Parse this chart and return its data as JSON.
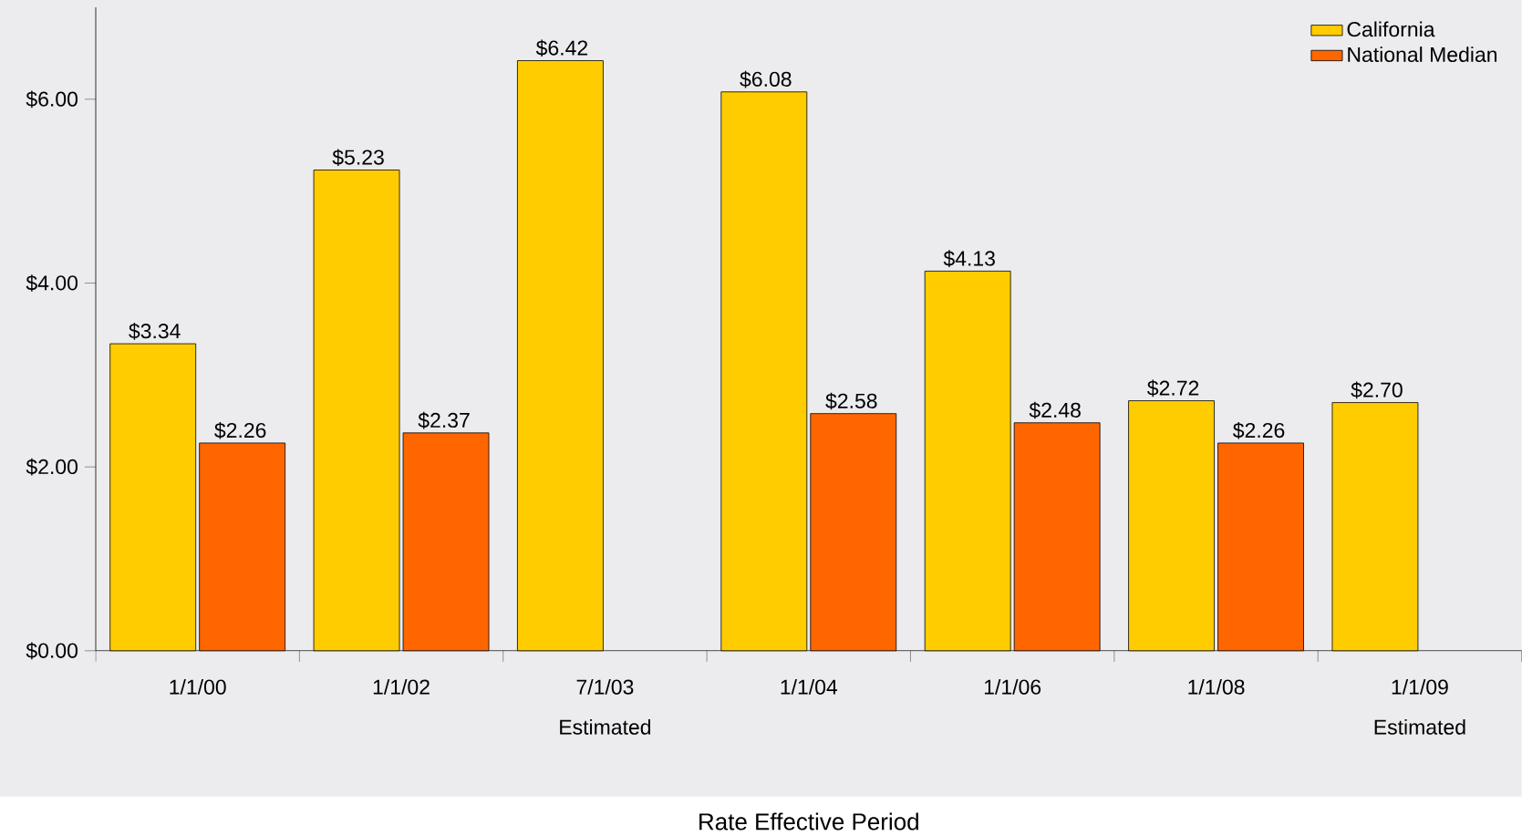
{
  "chart_data": {
    "type": "bar",
    "xlabel": "Rate Effective Period",
    "categories": [
      "1/1/00",
      "1/1/02",
      "7/1/03 Estimated",
      "1/1/04",
      "1/1/06",
      "1/1/08",
      "1/1/09 Estimated"
    ],
    "series": [
      {
        "name": "California",
        "color": "#ffcc00",
        "values": [
          3.34,
          5.23,
          6.42,
          6.08,
          4.13,
          2.72,
          2.7
        ],
        "value_labels": [
          "$3.34",
          "$5.23",
          "$6.42",
          "$6.08",
          "$4.13",
          "$2.72",
          "$2.70"
        ]
      },
      {
        "name": "National Median",
        "color": "#ff6600",
        "values": [
          2.26,
          2.37,
          null,
          2.58,
          2.48,
          2.26,
          null
        ],
        "value_labels": [
          "$2.26",
          "$2.37",
          null,
          "$2.58",
          "$2.48",
          "$2.26",
          null
        ]
      }
    ],
    "ylim": [
      0,
      7
    ],
    "yticks": [
      {
        "value": 0,
        "label": "$0.00"
      },
      {
        "value": 2,
        "label": "$2.00"
      },
      {
        "value": 4,
        "label": "$4.00"
      },
      {
        "value": 6,
        "label": "$6.00"
      }
    ],
    "legend": "top right",
    "grid": false
  }
}
